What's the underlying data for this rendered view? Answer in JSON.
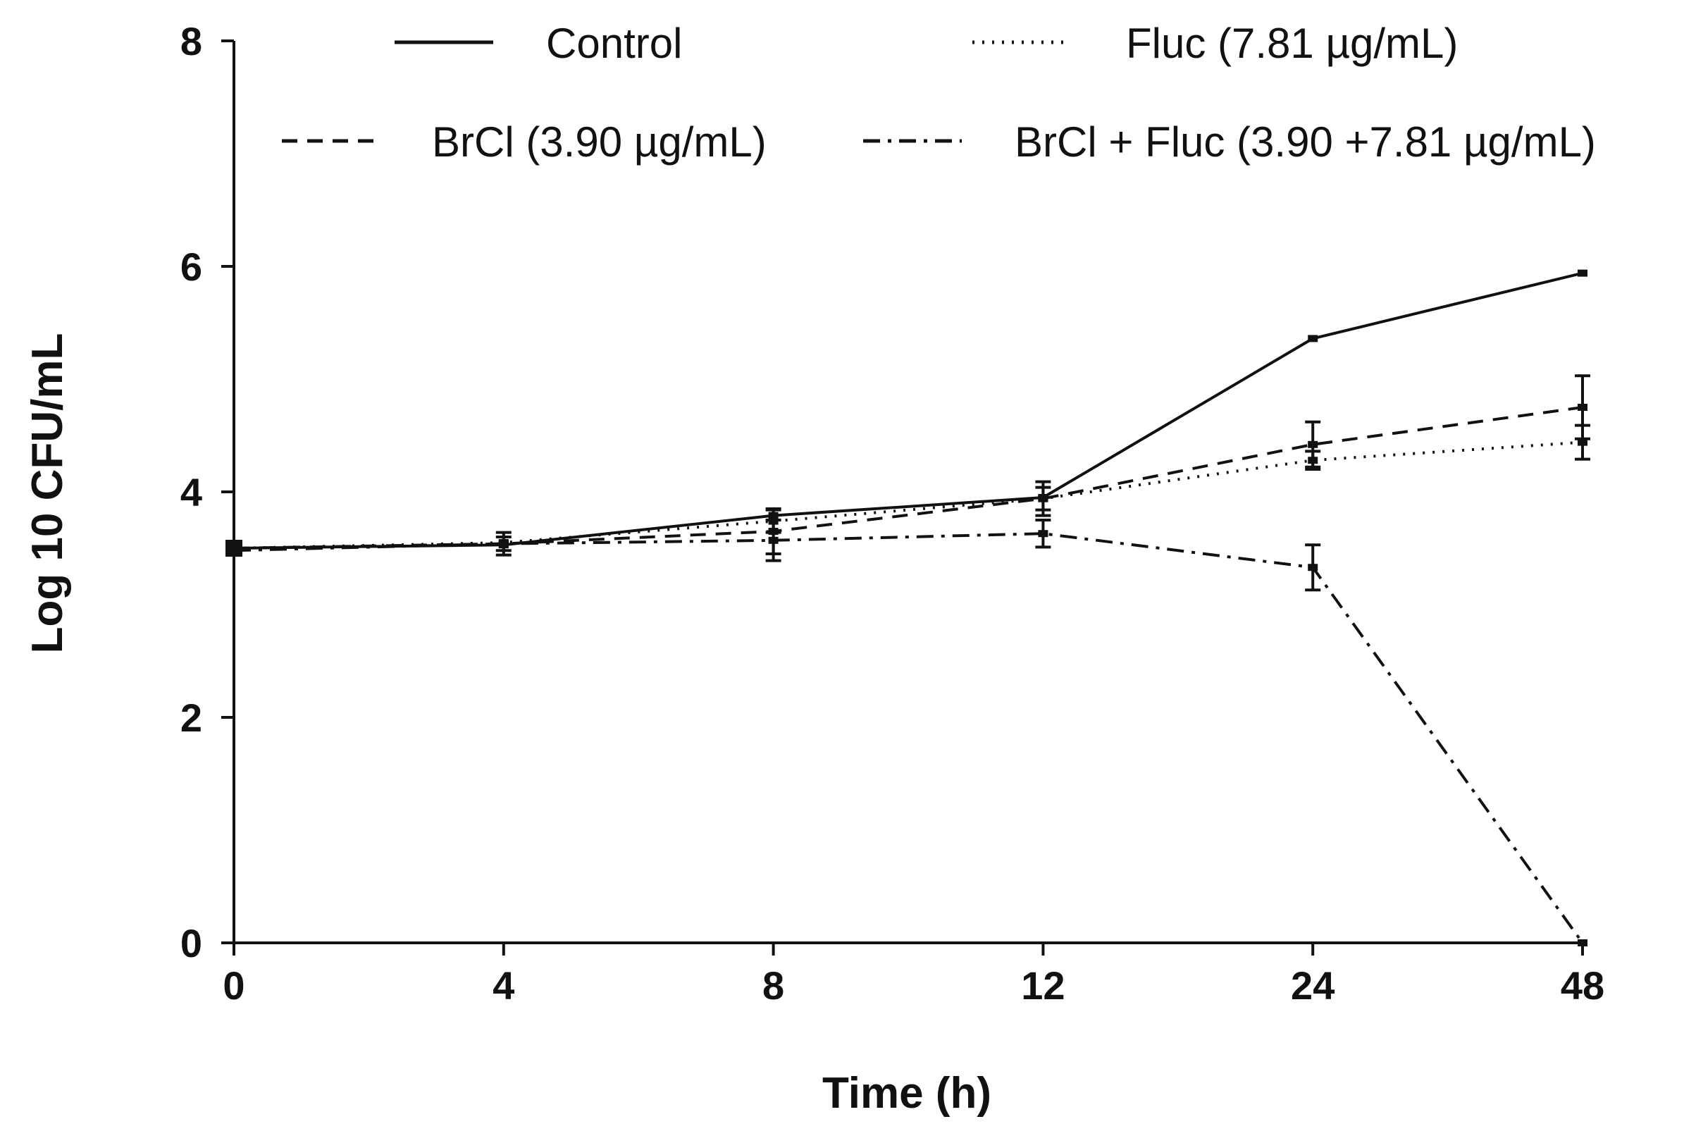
{
  "chart_data": {
    "type": "line",
    "title": "",
    "xlabel": "Time (h)",
    "ylabel": "Log 10 CFU/mL",
    "categories": [
      "0",
      "4",
      "8",
      "12",
      "24",
      "48"
    ],
    "ylim": [
      0,
      8
    ],
    "yticks": [
      "0",
      "2",
      "4",
      "6",
      "8"
    ],
    "grid": false,
    "legend": "top",
    "series": [
      {
        "name": "Control",
        "dash": "solid",
        "values": [
          3.5,
          3.53,
          3.79,
          3.95,
          5.36,
          5.94
        ],
        "errors": [
          0.0,
          0.0,
          0.0,
          0.0,
          0.0,
          0.0
        ]
      },
      {
        "name": "Fluc (7.81 µg/mL)",
        "dash": "dotted",
        "values": [
          3.5,
          3.55,
          3.74,
          3.94,
          4.28,
          4.44
        ],
        "errors": [
          0.0,
          0.0,
          0.1,
          0.1,
          0.08,
          0.15
        ]
      },
      {
        "name": "BrCl (3.90 µg/mL)",
        "dash": "dashed",
        "values": [
          3.5,
          3.54,
          3.65,
          3.94,
          4.42,
          4.75
        ],
        "errors": [
          0.0,
          0.06,
          0.2,
          0.15,
          0.2,
          0.28
        ]
      },
      {
        "name": "BrCl + Fluc (3.90 +7.81 µg/mL)",
        "dash": "dashdot",
        "values": [
          3.48,
          3.54,
          3.57,
          3.63,
          3.33,
          0.0
        ],
        "errors": [
          0.0,
          0.1,
          0.18,
          0.12,
          0.2,
          0.0
        ]
      }
    ]
  }
}
